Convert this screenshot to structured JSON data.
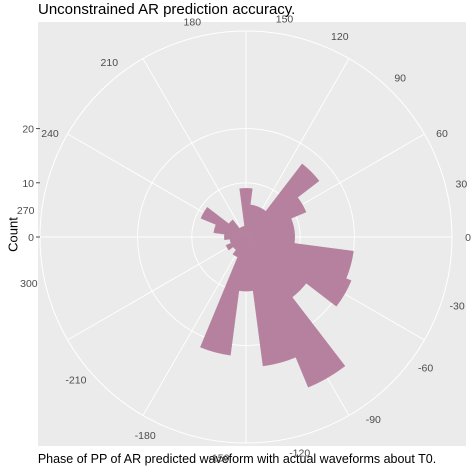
{
  "chart_data": {
    "type": "bar",
    "coord": "polar",
    "title": "Unconstrained AR prediction accuracy.",
    "xlabel": "Phase of PP of AR predicted waveform with actual waveforms about T0.",
    "ylabel": "Count",
    "bar_color": "#b5819f",
    "background_color": "#ebebeb",
    "grid_color": "#ffffff",
    "grid": true,
    "angle_ticks": [
      150,
      120,
      90,
      60,
      30,
      0,
      -30,
      -60,
      -90,
      -120,
      -150,
      -180,
      -210,
      300,
      270,
      240,
      210,
      180
    ],
    "y_ticks": [
      0,
      10,
      20
    ],
    "ylim": [
      0,
      38
    ],
    "bins": [
      {
        "phase": -165,
        "count": 1
      },
      {
        "phase": -150,
        "count": 2
      },
      {
        "phase": -135,
        "count": 3
      },
      {
        "phase": -120,
        "count": 4
      },
      {
        "phase": -105,
        "count": 22
      },
      {
        "phase": -90,
        "count": 10
      },
      {
        "phase": -75,
        "count": 24
      },
      {
        "phase": -60,
        "count": 30
      },
      {
        "phase": -45,
        "count": 14
      },
      {
        "phase": -30,
        "count": 21
      },
      {
        "phase": -15,
        "count": 20
      },
      {
        "phase": 0,
        "count": 9
      },
      {
        "phase": 15,
        "count": 9
      },
      {
        "phase": 30,
        "count": 12
      },
      {
        "phase": 45,
        "count": 17
      },
      {
        "phase": 60,
        "count": 6
      },
      {
        "phase": 75,
        "count": 6
      },
      {
        "phase": 90,
        "count": 9
      },
      {
        "phase": 105,
        "count": 2
      },
      {
        "phase": 120,
        "count": 2
      },
      {
        "phase": 135,
        "count": 4
      },
      {
        "phase": 150,
        "count": 9
      },
      {
        "phase": 165,
        "count": 6
      },
      {
        "phase": 180,
        "count": 4
      },
      {
        "phase": 195,
        "count": 3
      },
      {
        "phase": 210,
        "count": 4
      },
      {
        "phase": 225,
        "count": 1
      },
      {
        "phase": 240,
        "count": 1
      },
      {
        "phase": 255,
        "count": 3
      }
    ]
  }
}
